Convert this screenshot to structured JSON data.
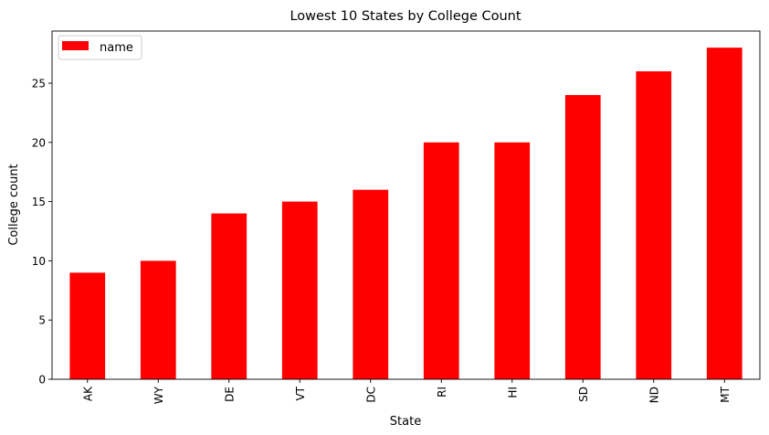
{
  "chart_data": {
    "type": "bar",
    "title": "Lowest 10 States by College Count",
    "xlabel": "State",
    "ylabel": "College count",
    "categories": [
      "AK",
      "WY",
      "DE",
      "VT",
      "DC",
      "RI",
      "HI",
      "SD",
      "ND",
      "MT"
    ],
    "series": [
      {
        "name": "name",
        "values": [
          9,
          10,
          14,
          15,
          16,
          20,
          20,
          24,
          26,
          28
        ]
      }
    ],
    "ylim": [
      0,
      29.4
    ],
    "yticks": [
      0,
      5,
      10,
      15,
      20,
      25
    ],
    "grid": false,
    "legend": "top-left",
    "bar_color": "#ff0000"
  }
}
